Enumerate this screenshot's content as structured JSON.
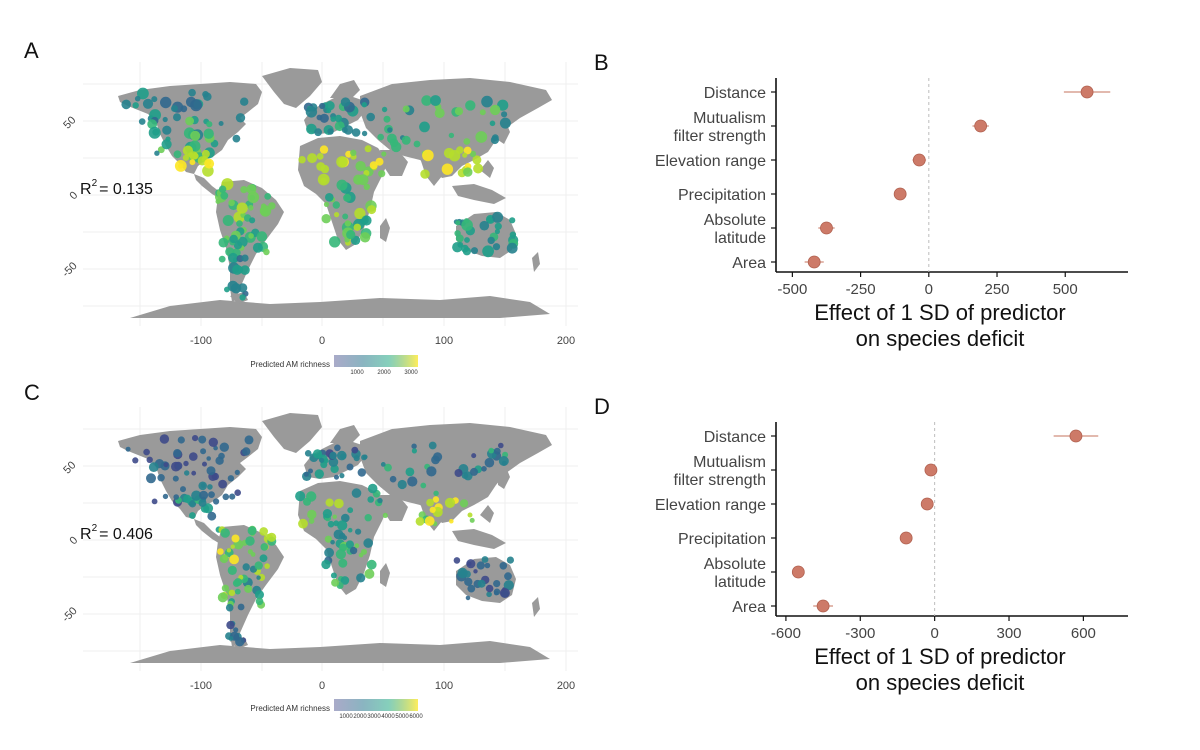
{
  "chart_data": [
    {
      "panel": "A",
      "type": "scatter",
      "title": "",
      "annotation": {
        "r2_label": "R",
        "r2_sup": "2",
        "r2_value": "= 0.135"
      },
      "x_ticks": [
        "-100",
        "0",
        "100",
        "200"
      ],
      "y_ticks": [
        "50",
        "0",
        "-50"
      ],
      "legend": {
        "title": "Predicted AM richness",
        "ticks": [
          "1000",
          "2000",
          "3000"
        ]
      }
    },
    {
      "panel": "B",
      "type": "scatter",
      "xlabel_line1": "Effect of 1 SD of predictor",
      "xlabel_line2": "on species deficit",
      "xlim": [
        -560,
        730
      ],
      "x_ticks": [
        "-500",
        "-250",
        "0",
        "250",
        "500"
      ],
      "x_tick_values": [
        -500,
        -250,
        0,
        250,
        500
      ],
      "categories": [
        {
          "lines": [
            "Distance"
          ],
          "value": 580,
          "err": 85
        },
        {
          "lines": [
            "Mutualism",
            "filter strength"
          ],
          "value": 190,
          "err": 30
        },
        {
          "lines": [
            "Elevation range"
          ],
          "value": -35,
          "err": 25
        },
        {
          "lines": [
            "Precipitation"
          ],
          "value": -105,
          "err": 20
        },
        {
          "lines": [
            "Absolute",
            "latitude"
          ],
          "value": -375,
          "err": 30
        },
        {
          "lines": [
            "Area"
          ],
          "value": -420,
          "err": 35
        }
      ]
    },
    {
      "panel": "C",
      "type": "scatter",
      "title": "",
      "annotation": {
        "r2_label": "R",
        "r2_sup": "2",
        "r2_value": "= 0.406"
      },
      "x_ticks": [
        "-100",
        "0",
        "100",
        "200"
      ],
      "y_ticks": [
        "50",
        "0",
        "-50"
      ],
      "legend": {
        "title": "Predicted AM richness",
        "ticks": [
          "1000",
          "2000",
          "3000",
          "4000",
          "5000",
          "6000"
        ]
      }
    },
    {
      "panel": "D",
      "type": "scatter",
      "xlabel_line1": "Effect of 1 SD of predictor",
      "xlabel_line2": "on species deficit",
      "xlim": [
        -640,
        780
      ],
      "x_ticks": [
        "-600",
        "-300",
        "0",
        "300",
        "600"
      ],
      "x_tick_values": [
        -600,
        -300,
        0,
        300,
        600
      ],
      "categories": [
        {
          "lines": [
            "Distance"
          ],
          "value": 570,
          "err": 90
        },
        {
          "lines": [
            "Mutualism",
            "filter strength"
          ],
          "value": -15,
          "err": 15
        },
        {
          "lines": [
            "Elevation range"
          ],
          "value": -30,
          "err": 15
        },
        {
          "lines": [
            "Precipitation"
          ],
          "value": -115,
          "err": 20
        },
        {
          "lines": [
            "Absolute",
            "latitude"
          ],
          "value": -550,
          "err": 20
        },
        {
          "lines": [
            "Area"
          ],
          "value": -450,
          "err": 40
        }
      ]
    }
  ],
  "colors": {
    "land": "#9a9a9a",
    "point": "#cd7a68",
    "point_stroke": "#b0604f",
    "viridis": [
      "#440154",
      "#3b528b",
      "#21908d",
      "#5dc963",
      "#fde725"
    ]
  }
}
